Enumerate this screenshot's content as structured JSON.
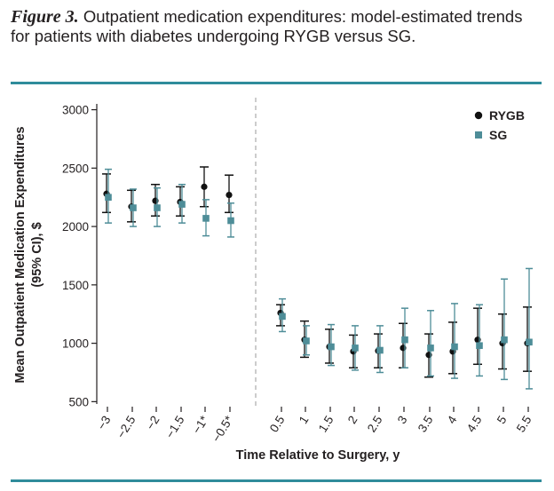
{
  "caption": {
    "label": "Figure 3.",
    "text": " Outpatient medication expenditures: model-estimated trends for patients with diabetes undergoing RYGB versus SG."
  },
  "chart_data": {
    "type": "scatter",
    "title": "Outpatient medication expenditures: model-estimated trends for patients with diabetes undergoing RYGB versus SG.",
    "xlabel": "Time Relative to Surgery, y",
    "ylabel_line1": "Mean Outpatient Medication Expenditures",
    "ylabel_line2": "(95% CI), $",
    "ylim": [
      480,
      3050
    ],
    "yticks": [
      500,
      1000,
      1500,
      2000,
      2500,
      3000
    ],
    "categories": [
      "−3",
      "−2.5",
      "−2",
      "−1.5",
      "−1*",
      "−0.5*",
      "0.5",
      "1",
      "1.5",
      "2",
      "2.5",
      "3",
      "3.5",
      "4",
      "4.5",
      "5",
      "5.5"
    ],
    "legend_position": "top-right",
    "divider_between": [
      "−0.5*",
      "0.5"
    ],
    "series": [
      {
        "name": "RYGB",
        "color": "#111111",
        "marker": "circle",
        "values": [
          2280,
          2170,
          2220,
          2210,
          2340,
          2270,
          1260,
          1030,
          970,
          930,
          935,
          960,
          900,
          930,
          1030,
          1000,
          1000
        ],
        "lower": [
          2120,
          2040,
          2090,
          2090,
          2170,
          2120,
          1150,
          880,
          830,
          790,
          790,
          790,
          710,
          740,
          820,
          780,
          760
        ],
        "upper": [
          2450,
          2310,
          2360,
          2340,
          2510,
          2440,
          1330,
          1190,
          1120,
          1070,
          1080,
          1170,
          1080,
          1180,
          1300,
          1250,
          1310
        ]
      },
      {
        "name": "SG",
        "color": "#4e8d98",
        "marker": "square",
        "values": [
          2250,
          2160,
          2160,
          2190,
          2070,
          2050,
          1230,
          1020,
          970,
          960,
          940,
          1030,
          960,
          970,
          980,
          1030,
          1010
        ],
        "lower": [
          2030,
          2000,
          2000,
          2030,
          1920,
          1910,
          1100,
          900,
          810,
          770,
          750,
          790,
          720,
          700,
          720,
          690,
          610
        ],
        "upper": [
          2490,
          2320,
          2330,
          2360,
          2230,
          2200,
          1380,
          1150,
          1160,
          1150,
          1150,
          1300,
          1280,
          1340,
          1330,
          1550,
          1640
        ]
      }
    ]
  }
}
